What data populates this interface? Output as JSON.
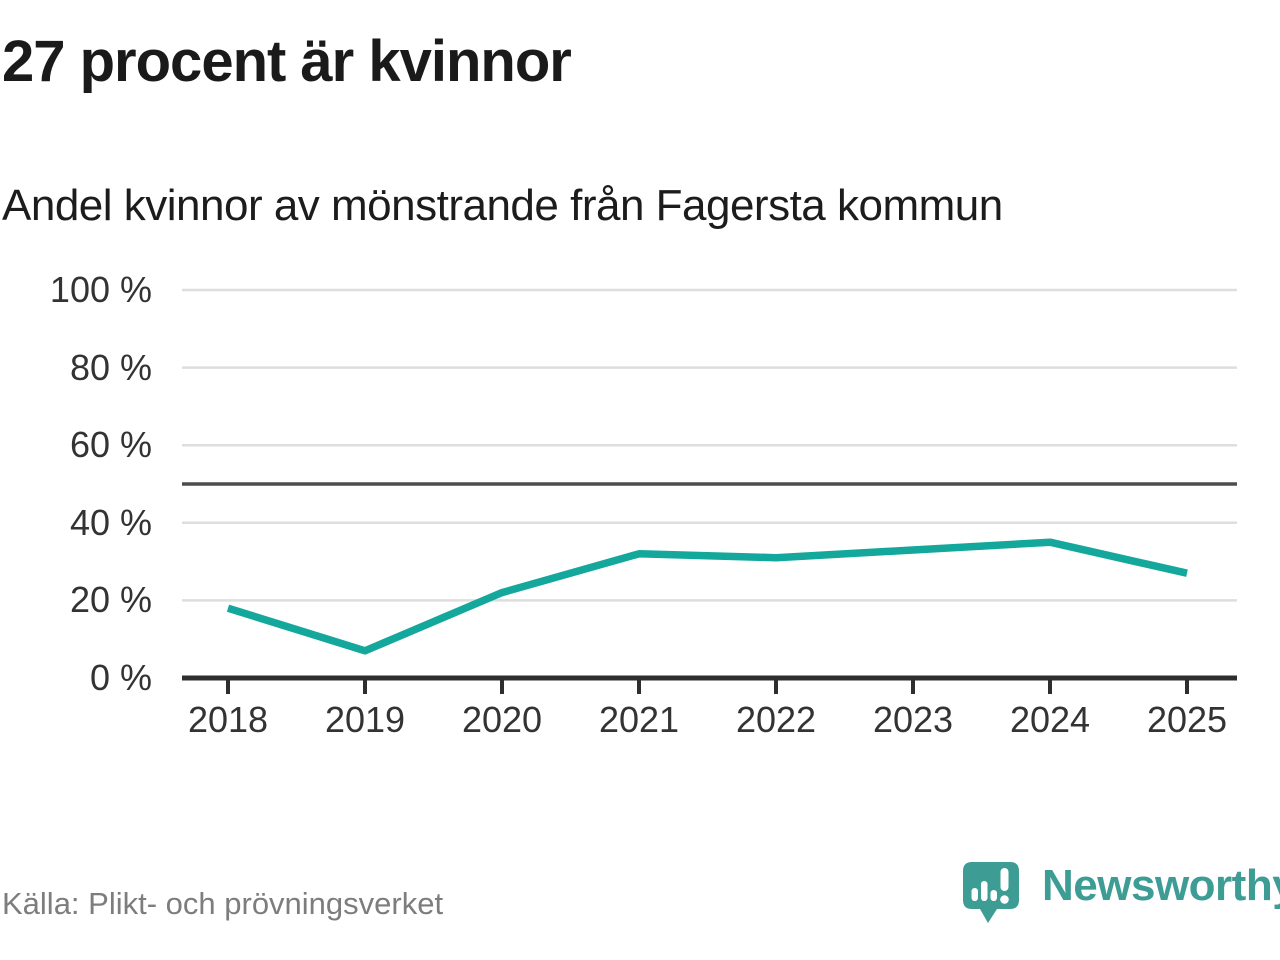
{
  "header": {
    "title": "27 procent är kvinnor",
    "subtitle": "Andel kvinnor av mönstrande från Fagersta kommun"
  },
  "footer": {
    "source": "Källa: Plikt- och prövningsverket",
    "brand": "Newsworthy",
    "logo_icon": "newsworthy-speech-bubble-bar-chart-icon"
  },
  "colors": {
    "line": "#14a79b",
    "brand": "#3d9c94",
    "grid": "#dedede",
    "reference_line": "#4d4d4d",
    "axis": "#2e2e2e",
    "title_text": "#1a1a1a",
    "subtitle_text": "#1c1c1c",
    "tick_text": "#333333",
    "source_text": "#7d7d7d"
  },
  "chart_data": {
    "type": "line",
    "title": "27 procent är kvinnor",
    "subtitle": "Andel kvinnor av mönstrande från Fagersta kommun",
    "categories": [
      "2018",
      "2019",
      "2020",
      "2021",
      "2022",
      "2023",
      "2024",
      "2025"
    ],
    "series": [
      {
        "name": "Andel kvinnor av mönstrande",
        "values": [
          18,
          7,
          22,
          32,
          31,
          33,
          35,
          27
        ],
        "color": "#14a79b"
      }
    ],
    "unit": "%",
    "ylim": [
      0,
      100
    ],
    "yticks": [
      {
        "value": 0,
        "label": "0 %"
      },
      {
        "value": 20,
        "label": "20 %"
      },
      {
        "value": 40,
        "label": "40 %"
      },
      {
        "value": 60,
        "label": "60 %"
      },
      {
        "value": 80,
        "label": "80 %"
      },
      {
        "value": 100,
        "label": "100 %"
      }
    ],
    "reference_value": 50,
    "grid": true,
    "legend": false,
    "source": "Källa: Plikt- och prövningsverket"
  }
}
